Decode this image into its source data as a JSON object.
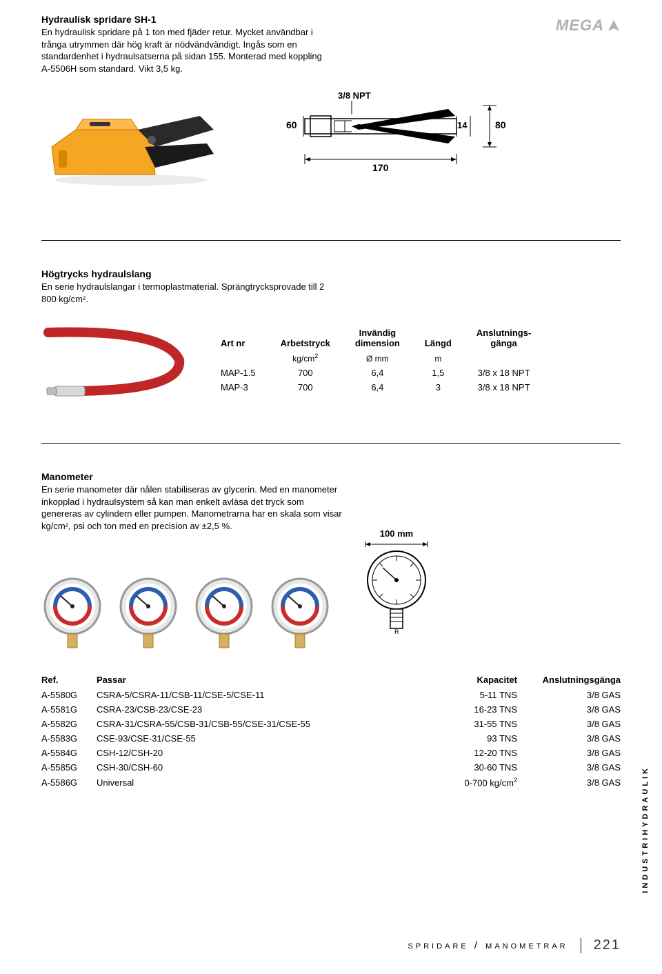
{
  "spreader": {
    "title": "Hydraulisk spridare SH-1",
    "desc": "En hydraulisk spridare på 1 ton med fjäder retur. Mycket användbar i trånga utrymmen där hög kraft är nödvändvändigt. Ingås som en standardenhet i hydraulsatserna på sidan 155. Monterad med koppling A-5506H som standard. Vikt 3,5 kg.",
    "logo": "MEGA",
    "diagram": {
      "npt_label": "3/8 NPT",
      "left_dim": "60",
      "bottom_dim": "170",
      "right_small": "14",
      "right_height": "80",
      "body_color": "#000000",
      "line_color": "#000000"
    },
    "tool_colors": {
      "body": "#f5a623",
      "jaw": "#333333"
    }
  },
  "hose": {
    "title": "Högtrycks hydraulslang",
    "desc": "En serie hydraulslangar i termoplastmaterial. Sprängtrycksprovade till 2 800 kg/cm².",
    "colors": {
      "hose": "#cc2b2b",
      "fitting": "#cccccc"
    },
    "table": {
      "headers": [
        "Art nr",
        "Arbetstryck",
        "Invändig dimension",
        "Längd",
        "Anslutnings-gänga"
      ],
      "units": [
        "",
        "kg/cm²",
        "Ø mm",
        "m",
        ""
      ],
      "rows": [
        [
          "MAP-1.5",
          "700",
          "6,4",
          "1,5",
          "3/8 x 18 NPT"
        ],
        [
          "MAP-3",
          "700",
          "6,4",
          "3",
          "3/8 x 18 NPT"
        ]
      ]
    }
  },
  "mano": {
    "title": "Manometer",
    "desc": "En serie manometer där nålen stabiliseras av glycerin. Med en manometer inkopplad i hydraulsystem så kan man enkelt avläsa det tryck som genereras av cylindern eller pumpen. Manometrarna har en skala som visar kg/cm², psi och ton med en precision av ±2,5 %.",
    "diagram_label": "100 mm",
    "gauge_colors": {
      "bezel": "#e8e8e8",
      "face": "#ffffff",
      "blue": "#2b5fae",
      "red": "#cc2b2b",
      "needle": "#222"
    },
    "table": {
      "headers": [
        "Ref.",
        "Passar",
        "Kapacitet",
        "Anslutningsgänga"
      ],
      "rows": [
        [
          "A-5580G",
          "CSRA-5/CSRA-11/CSB-11/CSE-5/CSE-11",
          "5-11 TNS",
          "3/8 GAS"
        ],
        [
          "A-5581G",
          "CSRA-23/CSB-23/CSE-23",
          "16-23 TNS",
          "3/8 GAS"
        ],
        [
          "A-5582G",
          "CSRA-31/CSRA-55/CSB-31/CSB-55/CSE-31/CSE-55",
          "31-55 TNS",
          "3/8 GAS"
        ],
        [
          "A-5583G",
          "CSE-93/CSE-31/CSE-55",
          "93 TNS",
          "3/8 GAS"
        ],
        [
          "A-5584G",
          "CSH-12/CSH-20",
          "12-20 TNS",
          "3/8 GAS"
        ],
        [
          "A-5585G",
          "CSH-30/CSH-60",
          "30-60 TNS",
          "3/8 GAS"
        ],
        [
          "A-5586G",
          "Universal",
          "0-700 kg/cm²",
          "3/8 GAS"
        ]
      ]
    }
  },
  "side_label": "INDUSTRIHYDRAULIK",
  "footer": {
    "category": "spridare / manometrar",
    "page": "221"
  }
}
